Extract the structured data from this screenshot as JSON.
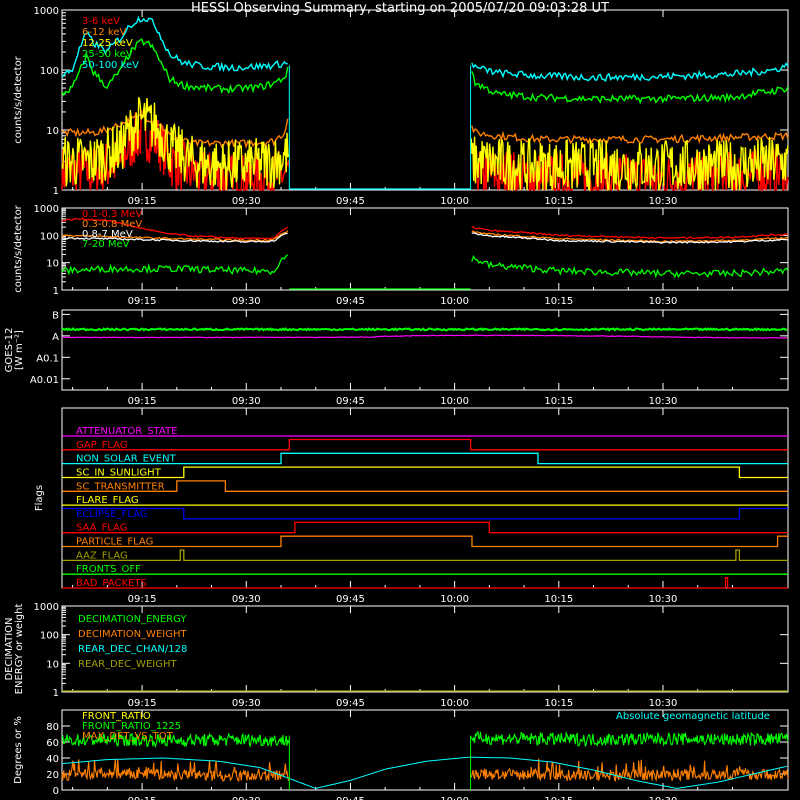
{
  "title": "HESSI Observing Summary, starting on 2005/07/20 09:03:28 UT",
  "colors": {
    "red": "#ff0000",
    "orange": "#ff8000",
    "yellow": "#ffff00",
    "green": "#00ff00",
    "cyan": "#00ffff",
    "magenta": "#ff00ff",
    "blue": "#0000ff",
    "olive": "#a0a000",
    "darkorange": "#ff6020",
    "white": "#ffffff"
  },
  "time_axis": {
    "tick_labels": [
      "09:15",
      "09:30",
      "09:45",
      "10:00",
      "10:15",
      "10:30"
    ],
    "tick_minutes": [
      15,
      30,
      45,
      60,
      75,
      90
    ],
    "range_minutes": [
      3.47,
      108.0
    ]
  },
  "chart_data": [
    {
      "type": "line",
      "ylabel": "counts/s/detector",
      "yscale": "log",
      "ylim": [
        1,
        1000
      ],
      "ytick_labels": [
        "1",
        "10",
        "100",
        "1000"
      ],
      "ytick_values": [
        1,
        10,
        100,
        1000
      ],
      "gap": [
        36.2,
        62.3
      ],
      "series": [
        {
          "name": "3-6 keV",
          "color": "#ff0000",
          "x": [
            3.5,
            8,
            12,
            14,
            15,
            17,
            19,
            22,
            26,
            30,
            34,
            36.2,
            62.3,
            70,
            80,
            90,
            100,
            108
          ],
          "values": [
            2,
            2,
            3,
            7,
            9,
            7,
            3,
            2,
            1.5,
            1.5,
            1.6,
            2,
            2,
            1.6,
            1.5,
            1.5,
            1.6,
            2
          ]
        },
        {
          "name": "6-12 keV",
          "color": "#ff8000",
          "x": [
            3.5,
            8,
            10,
            13,
            15,
            17,
            19,
            22,
            26,
            30,
            34,
            35.5,
            36.2,
            62.3,
            63,
            66,
            72,
            80,
            90,
            100,
            108
          ],
          "values": [
            9,
            9,
            10,
            14,
            17,
            14,
            8,
            6,
            6,
            6,
            6.5,
            9,
            20,
            12,
            9,
            8,
            7,
            7,
            7,
            7.5,
            8
          ]
        },
        {
          "name": "12-25 keV",
          "color": "#ffff00",
          "x": [
            3.5,
            8,
            12,
            14,
            15,
            17,
            19,
            22,
            26,
            30,
            34,
            36.2,
            62.3,
            70,
            80,
            90,
            100,
            108
          ],
          "values": [
            3,
            3,
            5,
            12,
            15,
            11,
            5,
            3,
            2.5,
            2.5,
            3,
            4,
            3,
            2.5,
            2.5,
            2.5,
            2.5,
            3
          ]
        },
        {
          "name": "25-50 keV",
          "color": "#00ff00",
          "x": [
            3.5,
            5,
            6,
            7,
            8,
            10,
            12,
            14,
            15,
            16,
            17,
            18,
            19,
            21,
            24,
            28,
            32,
            34,
            35.5,
            36.2,
            62.3,
            63,
            66,
            72,
            80,
            90,
            100,
            106,
            108
          ],
          "values": [
            40,
            50,
            90,
            170,
            90,
            50,
            100,
            240,
            300,
            270,
            190,
            110,
            70,
            55,
            50,
            48,
            52,
            60,
            75,
            110,
            110,
            60,
            40,
            35,
            33,
            33,
            35,
            45,
            50
          ]
        },
        {
          "name": "50-100 keV",
          "color": "#00ffff",
          "x": [
            3.5,
            5,
            6,
            7,
            8,
            10,
            12,
            14,
            15,
            16,
            17,
            18,
            19,
            21,
            24,
            28,
            32,
            34,
            35.5,
            36.2,
            62.3,
            63,
            66,
            72,
            80,
            90,
            100,
            106,
            108
          ],
          "values": [
            80,
            100,
            220,
            400,
            280,
            200,
            350,
            650,
            750,
            700,
            520,
            300,
            180,
            130,
            115,
            110,
            115,
            120,
            130,
            120,
            140,
            110,
            90,
            80,
            75,
            78,
            85,
            100,
            120
          ]
        }
      ]
    },
    {
      "type": "line",
      "ylabel": "counts/s/detector",
      "yscale": "log",
      "ylim": [
        1,
        1000
      ],
      "ytick_labels": [
        "1",
        "10",
        "100",
        "1000"
      ],
      "ytick_values": [
        1,
        10,
        100,
        1000
      ],
      "gap": [
        36.2,
        62.3
      ],
      "series": [
        {
          "name": "0.1-0.3 MeV",
          "color": "#ff0000",
          "x": [
            3.5,
            6,
            10,
            14,
            18,
            22,
            26,
            30,
            34,
            36.2,
            62.3,
            65,
            75,
            90,
            100,
            108
          ],
          "values": [
            350,
            400,
            350,
            200,
            120,
            95,
            85,
            75,
            80,
            200,
            200,
            150,
            100,
            80,
            85,
            110
          ]
        },
        {
          "name": "0.3-0.8 MeV",
          "color": "#ff8000",
          "x": [
            3.5,
            10,
            20,
            30,
            34,
            36.2,
            62.3,
            65,
            75,
            90,
            100,
            108
          ],
          "values": [
            100,
            90,
            75,
            65,
            70,
            150,
            140,
            110,
            75,
            60,
            65,
            80
          ]
        },
        {
          "name": "0.8-7 MeV",
          "color": "#ffffff",
          "x": [
            3.5,
            10,
            20,
            30,
            34,
            36.2,
            62.3,
            65,
            75,
            90,
            100,
            108
          ],
          "values": [
            80,
            75,
            65,
            58,
            62,
            130,
            120,
            95,
            65,
            55,
            58,
            70
          ]
        },
        {
          "name": "7-20 MeV",
          "color": "#00ff00",
          "x": [
            3.5,
            10,
            20,
            30,
            34,
            36.2,
            62.3,
            65,
            75,
            90,
            100,
            108
          ],
          "values": [
            5,
            6,
            6,
            5,
            5,
            20,
            15,
            8,
            5,
            4,
            4,
            5
          ]
        }
      ]
    },
    {
      "type": "line",
      "ylabel": "GOES-12",
      "ylabel2": "[W m⁻²]",
      "yscale": "log",
      "ytick_labels": [
        "A0.01",
        "A0.1",
        "A",
        "B"
      ],
      "series": [
        {
          "name": "",
          "color": "#00ff00",
          "x": [
            3.5,
            108
          ],
          "values": [
            2,
            2
          ]
        },
        {
          "name": "",
          "color": "#ff00ff",
          "x": [
            3.5,
            40,
            48,
            50,
            58,
            70,
            85,
            94,
            100,
            108
          ],
          "values": [
            0.85,
            0.85,
            0.88,
            0.95,
            1.05,
            1.05,
            0.95,
            0.85,
            0.82,
            0.8
          ]
        }
      ]
    },
    {
      "type": "line",
      "ylabel": "Flags",
      "series": [
        {
          "name": "ATTENUATOR_STATE",
          "color": "#ff00ff",
          "x": [
            3.5,
            108
          ],
          "values": [
            0,
            0
          ]
        },
        {
          "name": "GAP_FLAG",
          "color": "#ff0000",
          "x": [
            3.5,
            36.2,
            36.2,
            62.3,
            62.3,
            108
          ],
          "values": [
            0,
            0,
            1,
            1,
            0,
            0
          ]
        },
        {
          "name": "NON_SOLAR_EVENT",
          "color": "#00ffff",
          "x": [
            3.5,
            35,
            35,
            72,
            72,
            108
          ],
          "values": [
            0,
            0,
            1,
            1,
            0,
            0
          ]
        },
        {
          "name": "SC_IN_SUNLIGHT",
          "color": "#ffff00",
          "x": [
            3.5,
            21,
            21,
            101,
            101,
            108
          ],
          "values": [
            0,
            0,
            1,
            1,
            0,
            0
          ]
        },
        {
          "name": "SC_TRANSMITTER",
          "color": "#ff8000",
          "x": [
            3.5,
            20,
            20,
            27,
            27,
            108
          ],
          "values": [
            0,
            0,
            1,
            1,
            0,
            0
          ]
        },
        {
          "name": "FLARE_FLAG",
          "color": "#ffff00",
          "x": [
            3.5,
            108
          ],
          "values": [
            0,
            0
          ]
        },
        {
          "name": "ECLIPSE_FLAG",
          "color": "#0000ff",
          "x": [
            3.5,
            21,
            21,
            101,
            101,
            108
          ],
          "values": [
            1,
            1,
            0,
            0,
            1,
            1
          ]
        },
        {
          "name": "SAA_FLAG",
          "color": "#ff0000",
          "x": [
            3.5,
            37,
            37,
            65,
            65,
            108
          ],
          "values": [
            0,
            0,
            1,
            1,
            0,
            0
          ]
        },
        {
          "name": "PARTICLE_FLAG",
          "color": "#ff8000",
          "x": [
            3.5,
            35,
            35,
            62.5,
            62.5,
            106.5,
            106.5,
            108
          ],
          "values": [
            0,
            0,
            1,
            1,
            0,
            0,
            1,
            1
          ]
        },
        {
          "name": "AAZ_FLAG",
          "color": "#a0a000",
          "x": [
            3.5,
            20.5,
            20.5,
            21,
            21,
            100.5,
            100.5,
            101,
            101,
            108
          ],
          "values": [
            0,
            0,
            1,
            1,
            0,
            0,
            1,
            1,
            0,
            0
          ]
        },
        {
          "name": "FRONTS_OFF",
          "color": "#00ff00",
          "x": [
            3.5,
            108
          ],
          "values": [
            0,
            0
          ]
        },
        {
          "name": "BAD_PACKETS",
          "color": "#ff0000",
          "x": [
            3.5,
            99,
            99,
            99.3,
            99.3,
            108
          ],
          "values": [
            0,
            0,
            1,
            1,
            0,
            0
          ]
        }
      ]
    },
    {
      "type": "line",
      "ylabel": "DECIMATION",
      "ylabel2": "ENERGY or weight",
      "yscale": "log",
      "ylim": [
        1,
        1000
      ],
      "ytick_labels": [
        "1",
        "10",
        "100",
        "1000"
      ],
      "ytick_values": [
        1,
        10,
        100,
        1000
      ],
      "series": [
        {
          "name": "DECIMATION_ENERGY",
          "color": "#00ff00",
          "x": [
            3.5,
            108
          ],
          "values": [
            1,
            1
          ]
        },
        {
          "name": "DECIMATION_WEIGHT",
          "color": "#ff8000",
          "x": [
            3.5,
            108
          ],
          "values": [
            1,
            1
          ]
        },
        {
          "name": "REAR_DEC_CHAN/128",
          "color": "#00ffff",
          "x": [
            3.5,
            108
          ],
          "values": [
            1,
            1
          ]
        },
        {
          "name": "REAR_DEC_WEIGHT",
          "color": "#a0a000",
          "x": [
            3.5,
            108
          ],
          "values": [
            1,
            1
          ]
        }
      ]
    },
    {
      "type": "line",
      "ylabel": "Degrees or %",
      "ylim": [
        0,
        100
      ],
      "ytick_labels": [
        "0",
        "20",
        "40",
        "60",
        "80"
      ],
      "ytick_values": [
        0,
        20,
        40,
        60,
        80
      ],
      "gap": [
        36.2,
        62.3
      ],
      "annotation": "Absolute geomagnetic latitude",
      "series": [
        {
          "name": "FRONT_RATIO",
          "color": "#ffff00",
          "x": [
            3.5,
            108
          ],
          "values": [
            0,
            0
          ]
        },
        {
          "name": "FRONT_RATIO_1225",
          "color": "#00ff00",
          "x": [
            3.5,
            10,
            20,
            30,
            36.2,
            62.3,
            70,
            80,
            90,
            100,
            108
          ],
          "values": [
            62,
            63,
            62,
            63,
            62,
            65,
            64,
            63,
            64,
            63,
            64
          ]
        },
        {
          "name": "MAX_DET_VS_TOT",
          "color": "#ff8000",
          "x": [
            3.5,
            10,
            20,
            30,
            36.2,
            62.3,
            70,
            80,
            90,
            100,
            108
          ],
          "values": [
            18,
            20,
            19,
            18,
            18,
            20,
            19,
            18,
            19,
            20,
            19
          ]
        },
        {
          "name": "Absolute geomagnetic latitude",
          "color": "#00ffff",
          "x": [
            3.5,
            10,
            18,
            26,
            32,
            36,
            40,
            45,
            50,
            56,
            62,
            68,
            74,
            80,
            86,
            92,
            98,
            104,
            108
          ],
          "values": [
            33,
            38,
            40,
            36,
            28,
            15,
            2,
            12,
            26,
            36,
            41,
            40,
            35,
            25,
            12,
            2,
            10,
            22,
            30
          ]
        }
      ]
    }
  ]
}
